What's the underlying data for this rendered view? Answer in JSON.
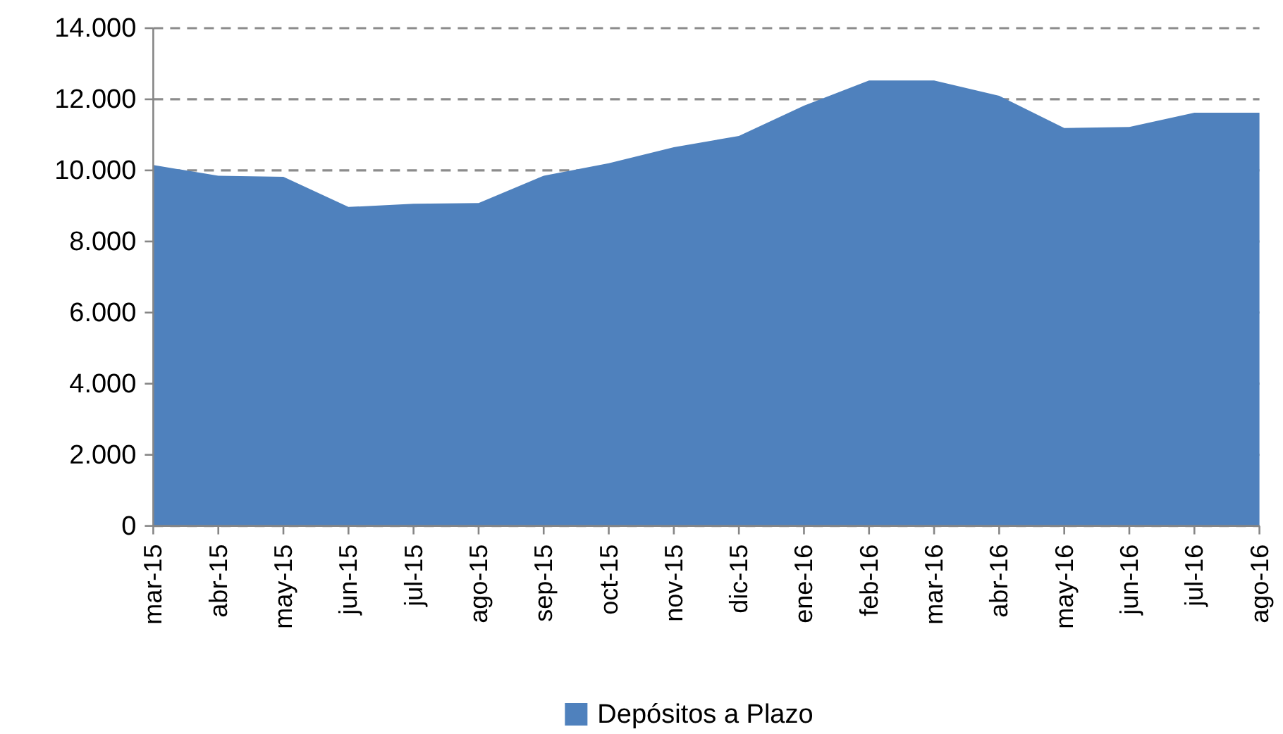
{
  "chart_data": {
    "type": "area",
    "categories": [
      "mar-15",
      "abr-15",
      "may-15",
      "jun-15",
      "jul-15",
      "ago-15",
      "sep-15",
      "oct-15",
      "nov-15",
      "dic-15",
      "ene-16",
      "feb-16",
      "mar-16",
      "abr-16",
      "may-16",
      "jun-16",
      "jul-16",
      "ago-16"
    ],
    "series": [
      {
        "name": "Depósitos a Plazo",
        "color": "#4f81bd",
        "values": [
          10150,
          9850,
          9820,
          8970,
          9060,
          9080,
          9850,
          10200,
          10650,
          10970,
          11820,
          12530,
          12530,
          12100,
          11190,
          11220,
          11620,
          11620
        ]
      }
    ],
    "ylim": [
      0,
      14000
    ],
    "yticks": [
      0,
      {
        "value": 2000,
        "label": "2.000"
      },
      {
        "value": 4000,
        "label": "4.000"
      },
      {
        "value": 6000,
        "label": "6.000"
      },
      {
        "value": 8000,
        "label": "8.000"
      },
      {
        "value": 10000,
        "label": "10.000"
      },
      {
        "value": 12000,
        "label": "12.000"
      },
      {
        "value": 14000,
        "label": "14.000"
      }
    ],
    "grid": "y",
    "legend": "bottom"
  }
}
